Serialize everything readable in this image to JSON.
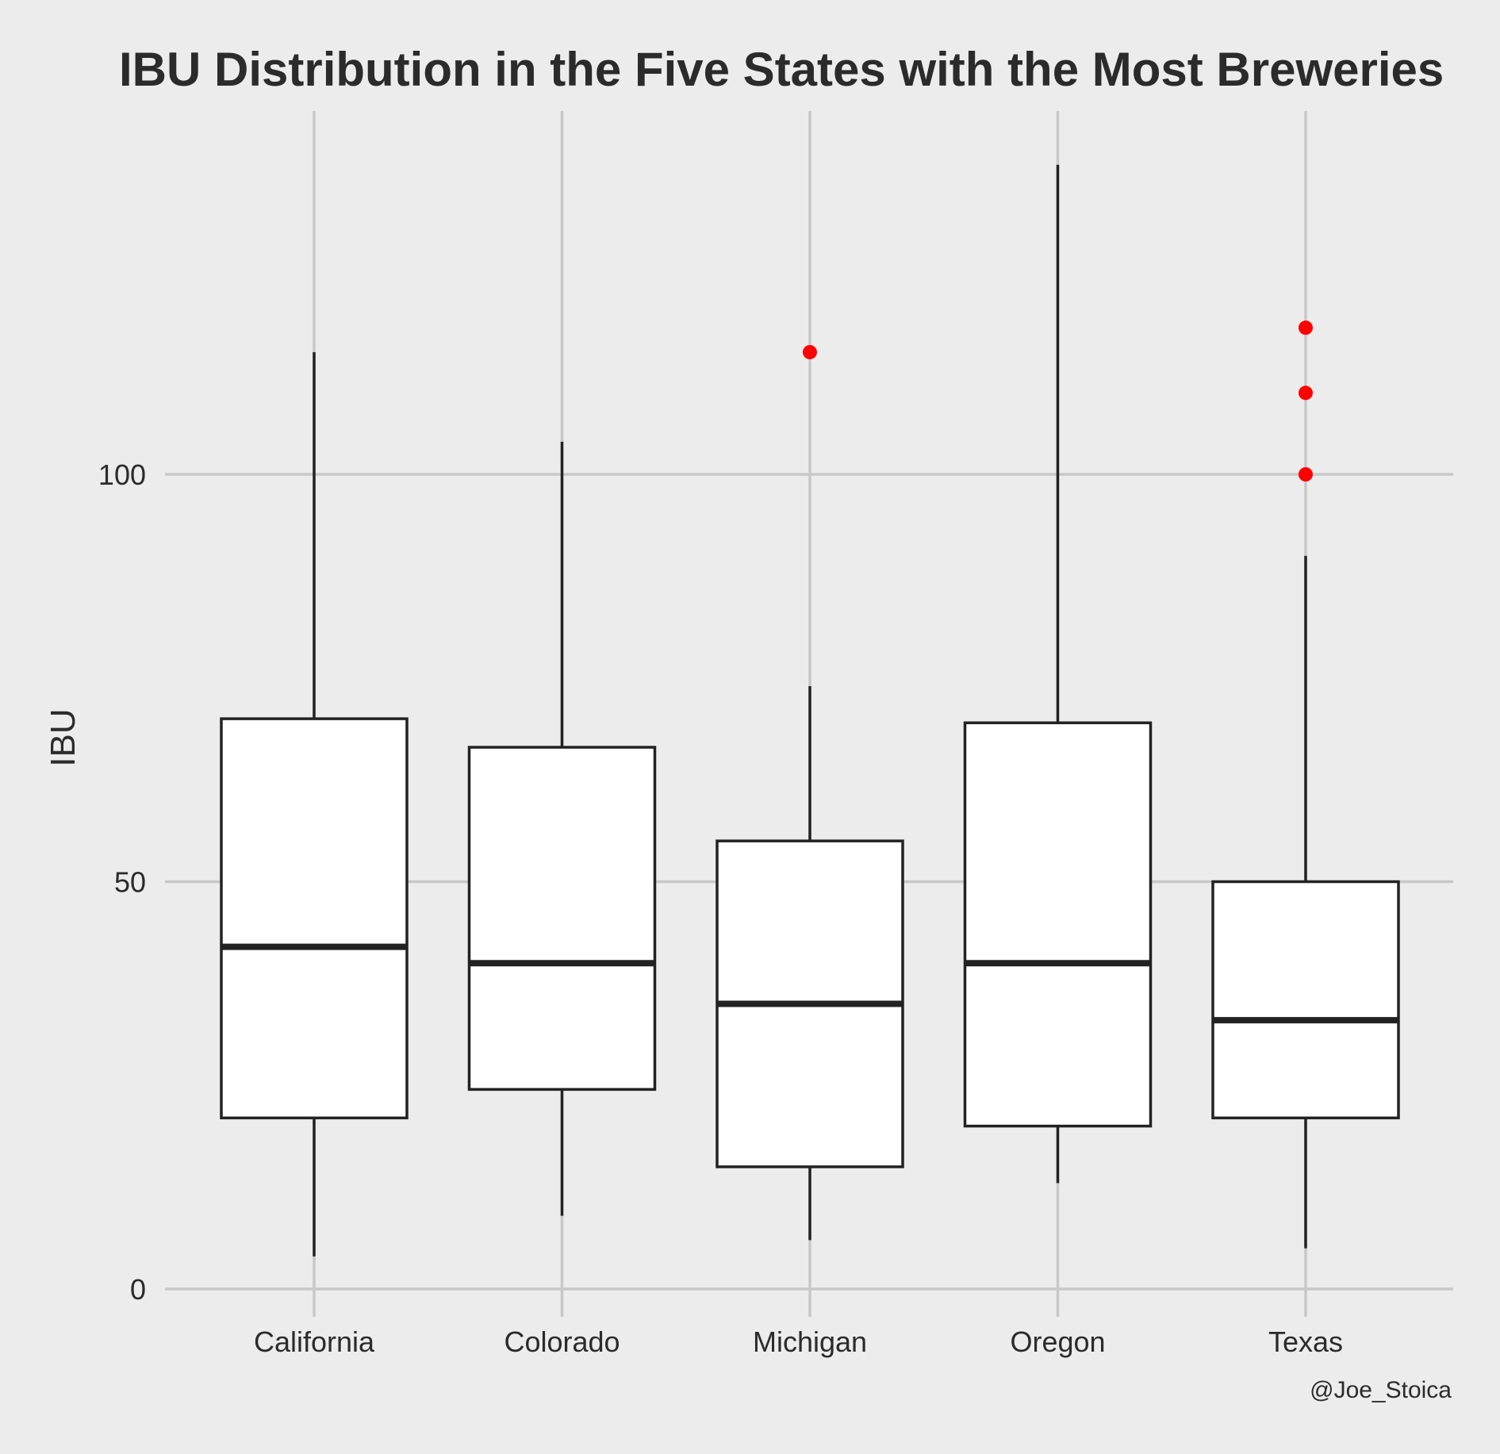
{
  "chart_data": {
    "type": "boxplot",
    "title": "IBU Distribution in the Five States with the Most Breweries",
    "xlabel": "",
    "ylabel": "IBU",
    "caption": "@Joe_Stoica",
    "categories": [
      "California",
      "Colorado",
      "Michigan",
      "Oregon",
      "Texas"
    ],
    "yticks": [
      0,
      50,
      100
    ],
    "ylim": [
      -2,
      145
    ],
    "grid": true,
    "boxes": [
      {
        "category": "California",
        "min": 4,
        "q1": 21,
        "median": 42,
        "q3": 70,
        "max": 115,
        "outliers": []
      },
      {
        "category": "Colorado",
        "min": 9,
        "q1": 24.5,
        "median": 40,
        "q3": 66.5,
        "max": 104,
        "outliers": []
      },
      {
        "category": "Michigan",
        "min": 6,
        "q1": 15,
        "median": 35,
        "q3": 55,
        "max": 74,
        "outliers": [
          115
        ]
      },
      {
        "category": "Oregon",
        "min": 13,
        "q1": 20,
        "median": 40,
        "q3": 69.5,
        "max": 138,
        "outliers": []
      },
      {
        "category": "Texas",
        "min": 5,
        "q1": 21,
        "median": 33,
        "q3": 50,
        "max": 90,
        "outliers": [
          100,
          110,
          118
        ]
      }
    ],
    "colors": {
      "background": "#ececec",
      "grid": "#c8c8c8",
      "box_fill": "#ffffff",
      "box_line": "#222222",
      "outlier": "#ff0000"
    }
  }
}
